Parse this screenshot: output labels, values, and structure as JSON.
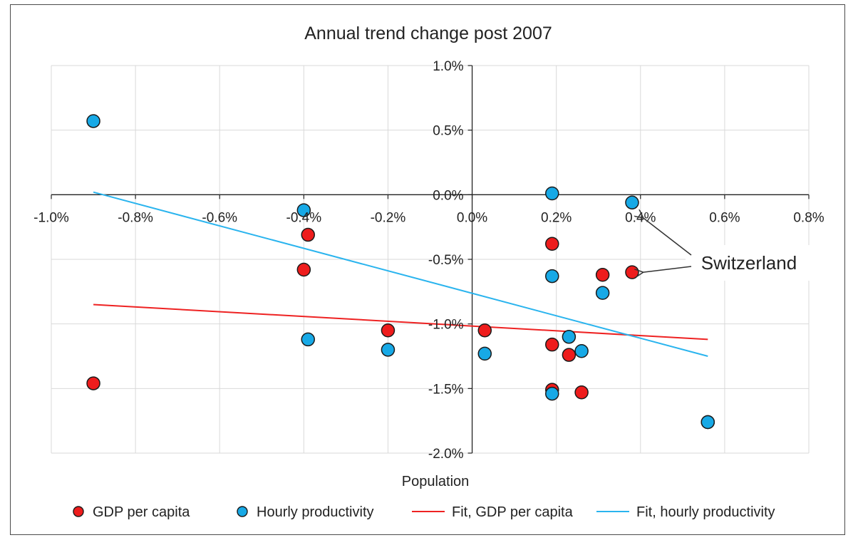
{
  "chart_data": {
    "type": "scatter",
    "title": "Annual trend change post 2007",
    "xlabel": "Population",
    "ylabel": "",
    "xlim": [
      -0.01,
      0.008
    ],
    "ylim": [
      -0.02,
      0.01
    ],
    "x_ticks": [
      -0.01,
      -0.008,
      -0.006,
      -0.004,
      -0.002,
      0.0,
      0.002,
      0.004,
      0.006,
      0.008
    ],
    "x_tick_labels": [
      "-1.0%",
      "-0.8%",
      "-0.6%",
      "-0.4%",
      "-0.2%",
      "0.0%",
      "0.2%",
      "0.4%",
      "0.6%",
      "0.8%"
    ],
    "y_ticks": [
      0.01,
      0.005,
      0.0,
      -0.005,
      -0.01,
      -0.015,
      -0.02
    ],
    "y_tick_labels": [
      "1.0%",
      "0.5%",
      "0.0%",
      "-0.5%",
      "-1.0%",
      "-1.5%",
      "-2.0%"
    ],
    "grid": true,
    "legend_position": "bottom",
    "series": [
      {
        "name": "GDP per capita",
        "kind": "scatter",
        "color": "#ee1c1c",
        "points": [
          {
            "x": -0.009,
            "y": -0.0146
          },
          {
            "x": -0.004,
            "y": -0.0058
          },
          {
            "x": -0.0039,
            "y": -0.0031
          },
          {
            "x": -0.002,
            "y": -0.0105
          },
          {
            "x": 0.0003,
            "y": -0.0105
          },
          {
            "x": 0.0019,
            "y": -0.0151
          },
          {
            "x": 0.0019,
            "y": -0.0116
          },
          {
            "x": 0.0019,
            "y": -0.0038
          },
          {
            "x": 0.0023,
            "y": -0.0124
          },
          {
            "x": 0.0026,
            "y": -0.0153
          },
          {
            "x": 0.0031,
            "y": -0.0062
          },
          {
            "x": 0.0038,
            "y": -0.006
          },
          {
            "x": 0.0056,
            "y": -0.0176
          }
        ]
      },
      {
        "name": "Hourly productivity",
        "kind": "scatter",
        "color": "#17a9e6",
        "points": [
          {
            "x": -0.009,
            "y": 0.0057
          },
          {
            "x": -0.004,
            "y": -0.0012
          },
          {
            "x": -0.0039,
            "y": -0.0112
          },
          {
            "x": -0.002,
            "y": -0.012
          },
          {
            "x": 0.0003,
            "y": -0.0123
          },
          {
            "x": 0.0019,
            "y": -0.0154
          },
          {
            "x": 0.0019,
            "y": -0.0063
          },
          {
            "x": 0.0019,
            "y": 0.0001
          },
          {
            "x": 0.0023,
            "y": -0.011
          },
          {
            "x": 0.0026,
            "y": -0.0121
          },
          {
            "x": 0.0031,
            "y": -0.0076
          },
          {
            "x": 0.0038,
            "y": -0.0006
          },
          {
            "x": 0.0056,
            "y": -0.0176
          }
        ]
      },
      {
        "name": "Fit, GDP per capita",
        "kind": "line",
        "color": "#ee2222",
        "points": [
          {
            "x": -0.009,
            "y": -0.0085
          },
          {
            "x": 0.0056,
            "y": -0.0112
          }
        ]
      },
      {
        "name": "Fit, hourly productivity",
        "kind": "line",
        "color": "#2ab4ee",
        "points": [
          {
            "x": -0.009,
            "y": 0.0002
          },
          {
            "x": 0.0056,
            "y": -0.0125
          }
        ]
      }
    ],
    "annotations": [
      {
        "text": "Switzerland",
        "arrow_targets": [
          {
            "x": 0.004,
            "y": -0.006
          },
          {
            "x": 0.004,
            "y": -0.0018
          }
        ]
      }
    ]
  }
}
